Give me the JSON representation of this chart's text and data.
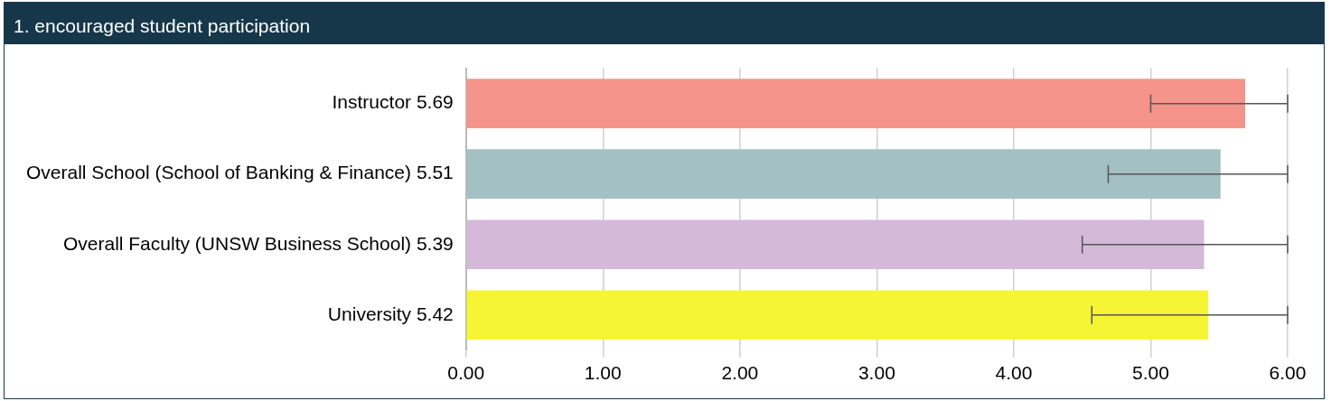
{
  "chart_data": {
    "type": "bar",
    "orientation": "horizontal",
    "title": "1. encouraged student participation",
    "categories": [
      "Instructor 5.69",
      "Overall School (School of Banking & Finance) 5.51",
      "Overall Faculty (UNSW Business School) 5.39",
      "University 5.42"
    ],
    "values": [
      5.69,
      5.51,
      5.39,
      5.42
    ],
    "colors": [
      "#f4948a",
      "#a3c1c2",
      "#d4b9d9",
      "#f6f535"
    ],
    "errors": [
      [
        5.0,
        6.0
      ],
      [
        4.69,
        6.0
      ],
      [
        4.5,
        6.0
      ],
      [
        4.57,
        6.0
      ]
    ],
    "xlim": [
      0,
      6
    ],
    "xticks": [
      {
        "value": 0,
        "label": "0.00"
      },
      {
        "value": 1,
        "label": "1.00"
      },
      {
        "value": 2,
        "label": "2.00"
      },
      {
        "value": 3,
        "label": "3.00"
      },
      {
        "value": 4,
        "label": "4.00"
      },
      {
        "value": 5,
        "label": "5.00"
      },
      {
        "value": 6,
        "label": "6.00"
      }
    ],
    "grid": "x",
    "legend": false
  }
}
